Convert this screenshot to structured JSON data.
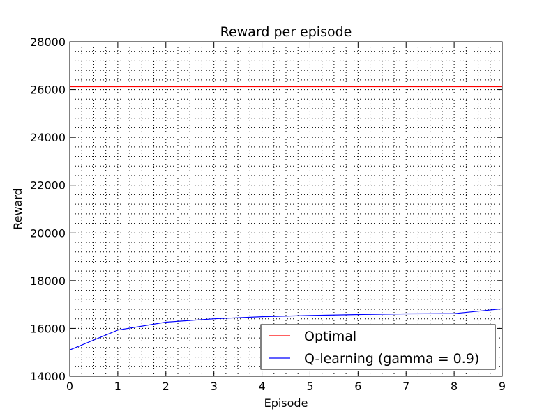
{
  "chart_data": {
    "type": "line",
    "title": "Reward per episode",
    "xlabel": "Episode",
    "ylabel": "Reward",
    "xlim": [
      0,
      9
    ],
    "ylim": [
      14000,
      28000
    ],
    "xticks": [
      "0",
      "1",
      "2",
      "3",
      "4",
      "5",
      "6",
      "7",
      "8",
      "9"
    ],
    "yticks": [
      "14000",
      "16000",
      "18000",
      "20000",
      "22000",
      "24000",
      "26000",
      "28000"
    ],
    "grid": true,
    "legend_position": "lower-right",
    "series": [
      {
        "name": "Optimal",
        "color": "#ff0000",
        "x": [
          0,
          9
        ],
        "y": [
          26120,
          26120
        ]
      },
      {
        "name": "Q-learning (gamma = 0.9)",
        "color": "#0000ff",
        "x": [
          0,
          1,
          2,
          3,
          4,
          5,
          6,
          7,
          8,
          9
        ],
        "y": [
          15100,
          15930,
          16260,
          16400,
          16490,
          16540,
          16580,
          16610,
          16620,
          16820
        ]
      }
    ]
  }
}
